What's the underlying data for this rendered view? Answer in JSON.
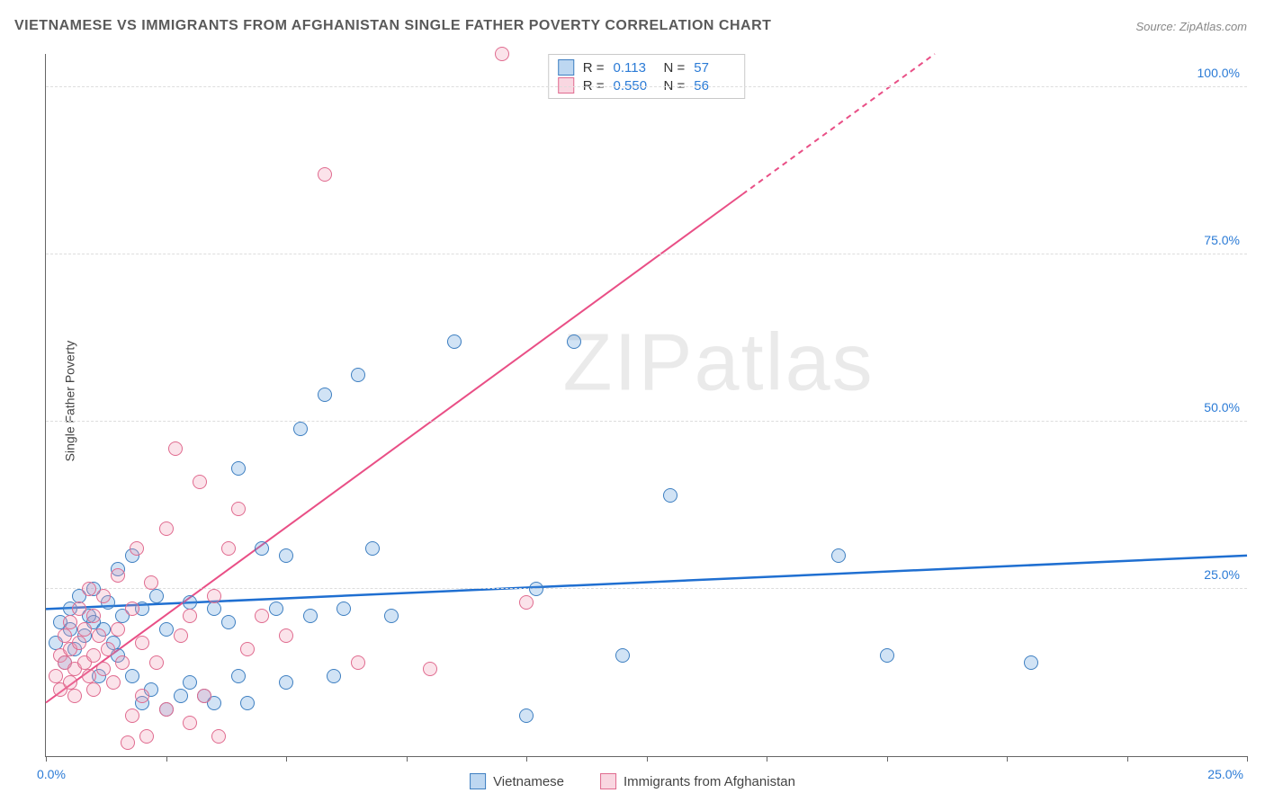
{
  "title": "VIETNAMESE VS IMMIGRANTS FROM AFGHANISTAN SINGLE FATHER POVERTY CORRELATION CHART",
  "source": "Source: ZipAtlas.com",
  "y_axis_label": "Single Father Poverty",
  "watermark_a": "ZIP",
  "watermark_b": "atlas",
  "chart": {
    "type": "scatter",
    "xlim": [
      0,
      25
    ],
    "ylim": [
      0,
      105
    ],
    "y_ticks": [
      25,
      50,
      75,
      100
    ],
    "y_tick_labels": [
      "25.0%",
      "50.0%",
      "75.0%",
      "100.0%"
    ],
    "x_ticks": [
      0,
      2.5,
      5,
      7.5,
      10,
      12.5,
      15,
      17.5,
      20,
      22.5,
      25
    ],
    "x_origin_label": "0.0%",
    "x_max_label": "25.0%",
    "background_color": "#ffffff",
    "grid_color": "#dddddd",
    "marker_radius": 8,
    "marker_stroke_width": 1.5,
    "marker_fill_opacity": 0.28,
    "series": [
      {
        "name": "Vietnamese",
        "color": "#5a9bdc",
        "stroke": "#3e7fc1",
        "r_label": "R =",
        "r_value": "0.113",
        "n_label": "N =",
        "n_value": "57",
        "trend": {
          "x1": 0,
          "y1": 22,
          "x2": 25,
          "y2": 30,
          "color": "#1f6fd1",
          "width": 2.5,
          "dash_after_x": null
        },
        "points": [
          [
            0.2,
            17
          ],
          [
            0.3,
            20
          ],
          [
            0.4,
            14
          ],
          [
            0.5,
            19
          ],
          [
            0.5,
            22
          ],
          [
            0.6,
            16
          ],
          [
            0.7,
            24
          ],
          [
            0.8,
            18
          ],
          [
            0.9,
            21
          ],
          [
            1.0,
            20
          ],
          [
            1.0,
            25
          ],
          [
            1.1,
            12
          ],
          [
            1.2,
            19
          ],
          [
            1.3,
            23
          ],
          [
            1.4,
            17
          ],
          [
            1.5,
            28
          ],
          [
            1.5,
            15
          ],
          [
            1.6,
            21
          ],
          [
            1.8,
            30
          ],
          [
            1.8,
            12
          ],
          [
            2.0,
            8
          ],
          [
            2.0,
            22
          ],
          [
            2.2,
            10
          ],
          [
            2.3,
            24
          ],
          [
            2.5,
            19
          ],
          [
            2.5,
            7
          ],
          [
            2.8,
            9
          ],
          [
            3.0,
            23
          ],
          [
            3.0,
            11
          ],
          [
            3.3,
            9
          ],
          [
            3.5,
            22
          ],
          [
            3.5,
            8
          ],
          [
            3.8,
            20
          ],
          [
            4.0,
            12
          ],
          [
            4.0,
            43
          ],
          [
            4.2,
            8
          ],
          [
            4.5,
            31
          ],
          [
            4.8,
            22
          ],
          [
            5.0,
            11
          ],
          [
            5.0,
            30
          ],
          [
            5.3,
            49
          ],
          [
            5.5,
            21
          ],
          [
            5.8,
            54
          ],
          [
            6.0,
            12
          ],
          [
            6.2,
            22
          ],
          [
            6.5,
            57
          ],
          [
            6.8,
            31
          ],
          [
            7.2,
            21
          ],
          [
            8.5,
            62
          ],
          [
            10.0,
            6
          ],
          [
            10.2,
            25
          ],
          [
            11.0,
            62
          ],
          [
            12.0,
            15
          ],
          [
            13.0,
            39
          ],
          [
            16.5,
            30
          ],
          [
            17.5,
            15
          ],
          [
            20.5,
            14
          ]
        ]
      },
      {
        "name": "Immigrants from Afghanistan",
        "color": "#f19ab4",
        "stroke": "#e06b8f",
        "r_label": "R =",
        "r_value": "0.550",
        "n_label": "N =",
        "n_value": "56",
        "trend": {
          "x1": 0,
          "y1": 8,
          "x2": 18.5,
          "y2": 105,
          "color": "#e94f86",
          "width": 2,
          "dash_after_x": 14.5
        },
        "points": [
          [
            0.2,
            12
          ],
          [
            0.3,
            15
          ],
          [
            0.3,
            10
          ],
          [
            0.4,
            18
          ],
          [
            0.4,
            14
          ],
          [
            0.5,
            11
          ],
          [
            0.5,
            16
          ],
          [
            0.5,
            20
          ],
          [
            0.6,
            13
          ],
          [
            0.6,
            9
          ],
          [
            0.7,
            17
          ],
          [
            0.7,
            22
          ],
          [
            0.8,
            14
          ],
          [
            0.8,
            19
          ],
          [
            0.9,
            12
          ],
          [
            0.9,
            25
          ],
          [
            1.0,
            15
          ],
          [
            1.0,
            10
          ],
          [
            1.0,
            21
          ],
          [
            1.1,
            18
          ],
          [
            1.2,
            13
          ],
          [
            1.2,
            24
          ],
          [
            1.3,
            16
          ],
          [
            1.4,
            11
          ],
          [
            1.5,
            19
          ],
          [
            1.5,
            27
          ],
          [
            1.6,
            14
          ],
          [
            1.7,
            2
          ],
          [
            1.8,
            6
          ],
          [
            1.8,
            22
          ],
          [
            1.9,
            31
          ],
          [
            2.0,
            17
          ],
          [
            2.0,
            9
          ],
          [
            2.1,
            3
          ],
          [
            2.2,
            26
          ],
          [
            2.3,
            14
          ],
          [
            2.5,
            34
          ],
          [
            2.5,
            7
          ],
          [
            2.7,
            46
          ],
          [
            2.8,
            18
          ],
          [
            3.0,
            21
          ],
          [
            3.0,
            5
          ],
          [
            3.2,
            41
          ],
          [
            3.3,
            9
          ],
          [
            3.5,
            24
          ],
          [
            3.6,
            3
          ],
          [
            3.8,
            31
          ],
          [
            4.0,
            37
          ],
          [
            4.2,
            16
          ],
          [
            4.5,
            21
          ],
          [
            5.0,
            18
          ],
          [
            5.8,
            87
          ],
          [
            6.5,
            14
          ],
          [
            8.0,
            13
          ],
          [
            9.5,
            105
          ],
          [
            10.0,
            23
          ]
        ]
      }
    ]
  },
  "legend": {
    "series1_label": "Vietnamese",
    "series2_label": "Immigrants from Afghanistan"
  }
}
